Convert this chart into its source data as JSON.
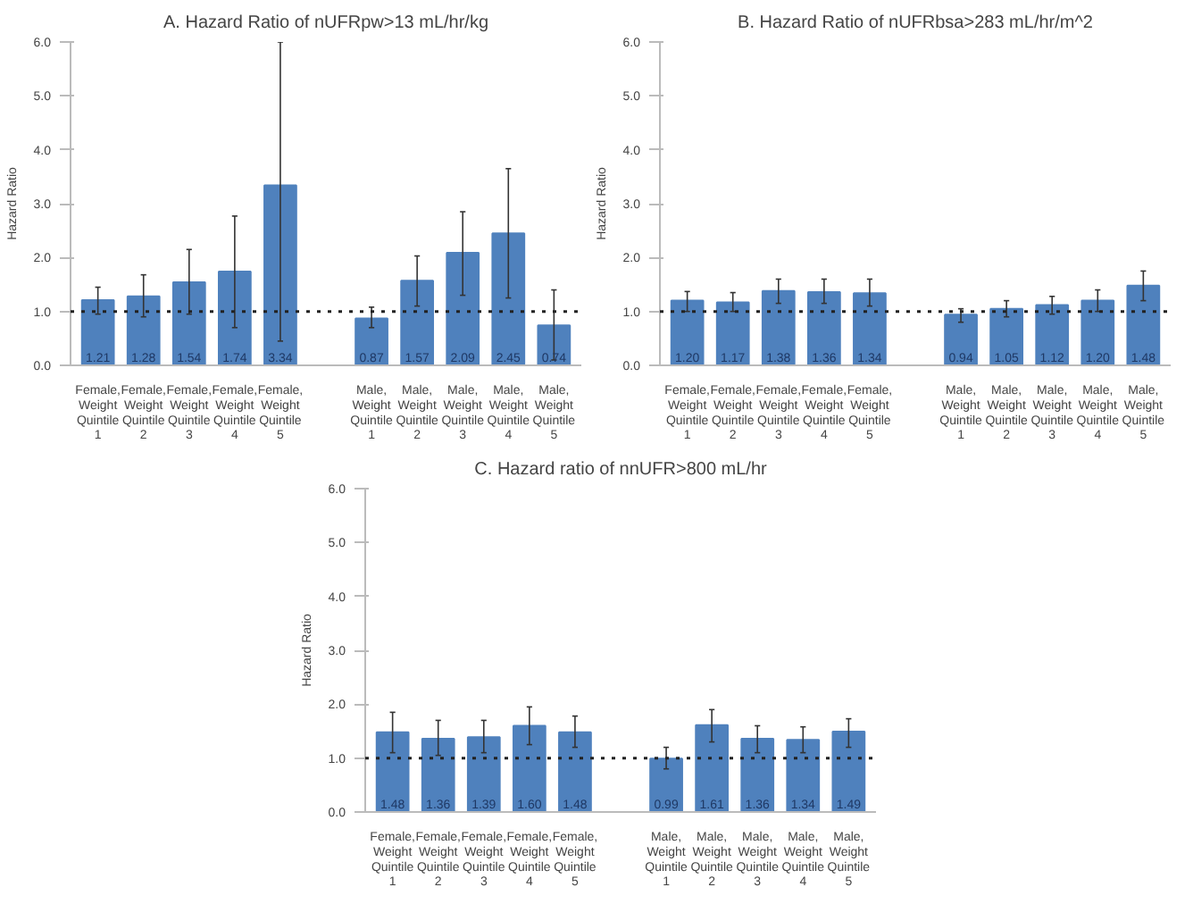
{
  "chart_data": [
    {
      "type": "bar",
      "title": "A. Hazard Ratio of nUFRpw>13 mL/hr/kg",
      "ylabel": "Hazard Ratio",
      "categories": [
        "Female, Weight Quintile 1",
        "Female, Weight Quintile 2",
        "Female, Weight Quintile 3",
        "Female, Weight Quintile 4",
        "Female, Weight Quintile 5",
        null,
        "Male, Weight Quintile 1",
        "Male, Weight Quintile 2",
        "Male, Weight Quintile 3",
        "Male, Weight Quintile 4",
        "Male, Weight Quintile 5"
      ],
      "series": [
        {
          "color": "#4f81bd",
          "values": [
            1.21,
            1.28,
            1.54,
            1.74,
            3.34,
            null,
            0.87,
            1.57,
            2.09,
            2.45,
            0.74
          ],
          "errors": [
            [
              0.95,
              1.45
            ],
            [
              0.9,
              1.68
            ],
            [
              0.95,
              2.15
            ],
            [
              0.7,
              2.77
            ],
            [
              0.45,
              6.0
            ],
            null,
            [
              0.7,
              1.08
            ],
            [
              1.1,
              2.03
            ],
            [
              1.3,
              2.85
            ],
            [
              1.25,
              3.65
            ],
            [
              0.1,
              1.4
            ]
          ],
          "value_labels": [
            "1.21",
            "1.28",
            "1.54",
            "1.74",
            "3.34",
            null,
            "0.87",
            "1.57",
            "2.09",
            "2.45",
            "0.74"
          ]
        }
      ],
      "ylim": [
        0,
        6
      ],
      "yticks": [
        {
          "value": 0,
          "label": "0.0"
        },
        {
          "value": 1,
          "label": "1.0"
        },
        {
          "value": 2,
          "label": "2.0"
        },
        {
          "value": 3,
          "label": "3.0"
        },
        {
          "value": 4,
          "label": "4.0"
        },
        {
          "value": 5,
          "label": "5.0"
        },
        {
          "value": 6,
          "label": "6.0"
        }
      ],
      "ref_lines": [
        {
          "axis": "y",
          "value": 1,
          "line_style": "dotted",
          "color": "#222222"
        }
      ],
      "grid": false
    },
    {
      "type": "bar",
      "title": "B. Hazard Ratio of nUFRbsa>283 mL/hr/m^2",
      "ylabel": "Hazard Ratio",
      "categories": [
        "Female, Weight Quintile 1",
        "Female, Weight Quintile 2",
        "Female, Weight Quintile 3",
        "Female, Weight Quintile 4",
        "Female, Weight Quintile 5",
        null,
        "Male, Weight Quintile 1",
        "Male, Weight Quintile 2",
        "Male, Weight Quintile 3",
        "Male, Weight Quintile 4",
        "Male, Weight Quintile 5"
      ],
      "series": [
        {
          "color": "#4f81bd",
          "values": [
            1.2,
            1.17,
            1.38,
            1.36,
            1.34,
            null,
            0.94,
            1.05,
            1.12,
            1.2,
            1.48
          ],
          "errors": [
            [
              1.0,
              1.37
            ],
            [
              1.0,
              1.35
            ],
            [
              1.15,
              1.6
            ],
            [
              1.15,
              1.6
            ],
            [
              1.1,
              1.6
            ],
            null,
            [
              0.8,
              1.05
            ],
            [
              0.9,
              1.2
            ],
            [
              0.95,
              1.28
            ],
            [
              1.0,
              1.4
            ],
            [
              1.2,
              1.75
            ]
          ],
          "value_labels": [
            "1.20",
            "1.17",
            "1.38",
            "1.36",
            "1.34",
            null,
            "0.94",
            "1.05",
            "1.12",
            "1.20",
            "1.48"
          ]
        }
      ],
      "ylim": [
        0,
        6
      ],
      "yticks": [
        {
          "value": 0,
          "label": "0.0"
        },
        {
          "value": 1,
          "label": "1.0"
        },
        {
          "value": 2,
          "label": "2.0"
        },
        {
          "value": 3,
          "label": "3.0"
        },
        {
          "value": 4,
          "label": "4.0"
        },
        {
          "value": 5,
          "label": "5.0"
        },
        {
          "value": 6,
          "label": "6.0"
        }
      ],
      "ref_lines": [
        {
          "axis": "y",
          "value": 1,
          "line_style": "dotted",
          "color": "#222222"
        }
      ],
      "grid": false
    },
    {
      "type": "bar",
      "title": "C. Hazard ratio of nnUFR>800 mL/hr",
      "ylabel": "Hazard Ratio",
      "categories": [
        "Female, Weight Quintile 1",
        "Female, Weight Quintile 2",
        "Female, Weight Quintile 3",
        "Female, Weight Quintile 4",
        "Female, Weight Quintile 5",
        null,
        "Male, Weight Quintile 1",
        "Male, Weight Quintile 2",
        "Male, Weight Quintile 3",
        "Male, Weight Quintile 4",
        "Male, Weight Quintile 5"
      ],
      "series": [
        {
          "color": "#4f81bd",
          "values": [
            1.48,
            1.36,
            1.39,
            1.6,
            1.48,
            null,
            0.99,
            1.61,
            1.36,
            1.34,
            1.49
          ],
          "errors": [
            [
              1.1,
              1.85
            ],
            [
              1.05,
              1.7
            ],
            [
              1.1,
              1.7
            ],
            [
              1.25,
              1.95
            ],
            [
              1.2,
              1.78
            ],
            null,
            [
              0.8,
              1.2
            ],
            [
              1.3,
              1.9
            ],
            [
              1.1,
              1.6
            ],
            [
              1.1,
              1.58
            ],
            [
              1.2,
              1.73
            ]
          ],
          "value_labels": [
            "1.48",
            "1.36",
            "1.39",
            "1.60",
            "1.48",
            null,
            "0.99",
            "1.61",
            "1.36",
            "1.34",
            "1.49"
          ]
        }
      ],
      "ylim": [
        0,
        6
      ],
      "yticks": [
        {
          "value": 0,
          "label": "0.0"
        },
        {
          "value": 1,
          "label": "1.0"
        },
        {
          "value": 2,
          "label": "2.0"
        },
        {
          "value": 3,
          "label": "3.0"
        },
        {
          "value": 4,
          "label": "4.0"
        },
        {
          "value": 5,
          "label": "5.0"
        },
        {
          "value": 6,
          "label": "6.0"
        }
      ],
      "ref_lines": [
        {
          "axis": "y",
          "value": 1,
          "line_style": "dotted",
          "color": "#222222"
        }
      ],
      "grid": false
    }
  ]
}
